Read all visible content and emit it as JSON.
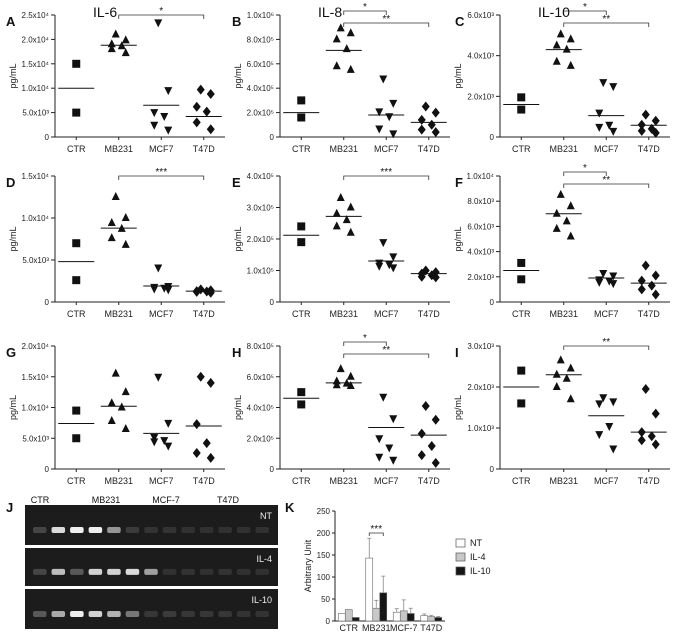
{
  "chart_data": [
    {
      "type": "scatter",
      "panel": "A",
      "title": "IL-6",
      "ylabel": "pg/mL",
      "ylim": [
        0,
        25000
      ],
      "yticks": [
        0,
        5000,
        10000,
        15000,
        20000,
        25000
      ],
      "ytick_labels": [
        "0",
        "5.0x10³",
        "1.0x10⁴",
        "1.5x10⁴",
        "2.0x10⁴",
        "2.5x10⁴"
      ],
      "categories": [
        "CTR",
        "MB231",
        "MCF7",
        "T47D"
      ],
      "points": [
        [
          15000,
          5000
        ],
        [
          21000,
          19800,
          19000,
          18600,
          18000,
          17200
        ],
        [
          23500,
          9600,
          5100,
          4300,
          2500,
          1500
        ],
        [
          9700,
          8800,
          6200,
          5200,
          3000,
          1600
        ]
      ],
      "means": [
        10000,
        18800,
        6500,
        4200
      ],
      "brackets": [
        {
          "from": 1,
          "to": 3,
          "label": "*"
        }
      ]
    },
    {
      "type": "scatter",
      "panel": "B",
      "title": "IL-8",
      "ylabel": "pg/mL",
      "ylim": [
        0,
        1000000
      ],
      "yticks": [
        0,
        200000,
        400000,
        600000,
        800000,
        1000000
      ],
      "ytick_labels": [
        "0",
        "2.0x10⁵",
        "4.0x10⁵",
        "6.0x10⁵",
        "8.0x10⁵",
        "1.0x10⁶"
      ],
      "categories": [
        "CTR",
        "MB231",
        "MCF7",
        "T47D"
      ],
      "points": [
        [
          300000,
          160000
        ],
        [
          890000,
          850000,
          800000,
          720000,
          580000,
          550000
        ],
        [
          480000,
          280000,
          210000,
          170000,
          70000,
          30000
        ],
        [
          250000,
          200000,
          140000,
          100000,
          60000,
          40000
        ]
      ],
      "means": [
        200000,
        710000,
        180000,
        120000
      ],
      "brackets": [
        {
          "from": 1,
          "to": 2,
          "label": "*"
        },
        {
          "from": 1,
          "to": 3,
          "label": "**"
        }
      ]
    },
    {
      "type": "scatter",
      "panel": "C",
      "title": "IL-10",
      "ylabel": "pg/mL",
      "ylim": [
        0,
        6000
      ],
      "yticks": [
        0,
        2000,
        4000,
        6000
      ],
      "ytick_labels": [
        "0",
        "2.0x10³",
        "4.0x10³",
        "6.0x10³"
      ],
      "categories": [
        "CTR",
        "MB231",
        "MCF7",
        "T47D"
      ],
      "points": [
        [
          1950,
          1350
        ],
        [
          5050,
          4800,
          4500,
          4300,
          3700,
          3500
        ],
        [
          2700,
          2500,
          1200,
          600,
          500,
          300
        ],
        [
          1100,
          800,
          600,
          400,
          300,
          200
        ]
      ],
      "means": [
        1600,
        4300,
        1050,
        580
      ],
      "brackets": [
        {
          "from": 1,
          "to": 2,
          "label": "*"
        },
        {
          "from": 1,
          "to": 3,
          "label": "**"
        }
      ]
    },
    {
      "type": "scatter",
      "panel": "D",
      "title": "",
      "ylabel": "pg/mL",
      "ylim": [
        0,
        15000
      ],
      "yticks": [
        0,
        5000,
        10000,
        15000
      ],
      "ytick_labels": [
        "0",
        "5.0x10³",
        "1.0x10⁴",
        "1.5x10⁴"
      ],
      "categories": [
        "CTR",
        "MB231",
        "MCF7",
        "T47D"
      ],
      "points": [
        [
          7000,
          2600
        ],
        [
          12500,
          10000,
          9400,
          8700,
          7600,
          6800
        ],
        [
          4100,
          1900,
          1800,
          1700,
          1600,
          1500
        ],
        [
          1500,
          1400,
          1300,
          1250,
          1200,
          1100
        ]
      ],
      "means": [
        4800,
        8800,
        1900,
        1300
      ],
      "brackets": [
        {
          "from": 1,
          "to": 3,
          "label": "***"
        }
      ]
    },
    {
      "type": "scatter",
      "panel": "E",
      "title": "",
      "ylabel": "pg/mL",
      "ylim": [
        0,
        400000
      ],
      "yticks": [
        0,
        100000,
        200000,
        300000,
        400000
      ],
      "ytick_labels": [
        "0",
        "1.0x10⁵",
        "2.0x10⁵",
        "3.0x10⁵",
        "4.0x10⁵"
      ],
      "categories": [
        "CTR",
        "MB231",
        "MCF7",
        "T47D"
      ],
      "points": [
        [
          240000,
          190000
        ],
        [
          330000,
          300000,
          280000,
          260000,
          240000,
          220000
        ],
        [
          190000,
          145000,
          125000,
          120000,
          115000,
          110000
        ],
        [
          100000,
          95000,
          90000,
          85000,
          80000,
          78000
        ]
      ],
      "means": [
        212000,
        272000,
        130000,
        90000
      ],
      "brackets": [
        {
          "from": 1,
          "to": 3,
          "label": "***"
        }
      ]
    },
    {
      "type": "scatter",
      "panel": "F",
      "title": "",
      "ylabel": "pg/mL",
      "ylim": [
        0,
        10000
      ],
      "yticks": [
        0,
        2000,
        4000,
        6000,
        8000,
        10000
      ],
      "ytick_labels": [
        "0",
        "2.0x10³",
        "4.0x10³",
        "6.0x10³",
        "8.0x10³",
        "1.0x10⁴"
      ],
      "categories": [
        "CTR",
        "MB231",
        "MCF7",
        "T47D"
      ],
      "points": [
        [
          3100,
          1800
        ],
        [
          8500,
          7600,
          7000,
          6400,
          5800,
          5200
        ],
        [
          2300,
          2100,
          1800,
          1700,
          1600,
          1500
        ],
        [
          2900,
          2100,
          1700,
          1300,
          1000,
          600
        ]
      ],
      "means": [
        2500,
        7000,
        1900,
        1500
      ],
      "brackets": [
        {
          "from": 1,
          "to": 2,
          "label": "*"
        },
        {
          "from": 1,
          "to": 3,
          "label": "**"
        }
      ]
    },
    {
      "type": "scatter",
      "panel": "G",
      "title": "",
      "ylabel": "pg/mL",
      "ylim": [
        0,
        20000
      ],
      "yticks": [
        0,
        5000,
        10000,
        15000,
        20000
      ],
      "ytick_labels": [
        "0",
        "5.0x10³",
        "1.0x10⁴",
        "1.5x10⁴",
        "2.0x10⁴"
      ],
      "categories": [
        "CTR",
        "MB231",
        "MCF7",
        "T47D"
      ],
      "points": [
        [
          9500,
          5000
        ],
        [
          15500,
          12500,
          10700,
          10000,
          7800,
          6500
        ],
        [
          15000,
          7500,
          5200,
          4700,
          4500,
          3800
        ],
        [
          15000,
          14000,
          7300,
          4200,
          2600,
          1800
        ]
      ],
      "means": [
        7400,
        10200,
        5800,
        7000
      ],
      "brackets": []
    },
    {
      "type": "scatter",
      "panel": "H",
      "title": "",
      "ylabel": "pg/mL",
      "ylim": [
        0,
        800000
      ],
      "yticks": [
        0,
        200000,
        400000,
        600000,
        800000
      ],
      "ytick_labels": [
        "0",
        "2.0x10⁵",
        "4.0x10⁵",
        "6.0x10⁵",
        "8.0x10⁵"
      ],
      "categories": [
        "CTR",
        "MB231",
        "MCF7",
        "T47D"
      ],
      "points": [
        [
          500000,
          420000
        ],
        [
          650000,
          600000,
          570000,
          555000,
          545000,
          540000
        ],
        [
          470000,
          330000,
          200000,
          140000,
          80000,
          60000
        ],
        [
          410000,
          320000,
          230000,
          150000,
          90000,
          40000
        ]
      ],
      "means": [
        460000,
        560000,
        270000,
        220000
      ],
      "brackets": [
        {
          "from": 1,
          "to": 2,
          "label": "*"
        },
        {
          "from": 1,
          "to": 3,
          "label": "**"
        }
      ]
    },
    {
      "type": "scatter",
      "panel": "I",
      "title": "",
      "ylabel": "pg/mL",
      "ylim": [
        0,
        3000
      ],
      "yticks": [
        0,
        1000,
        2000,
        3000
      ],
      "ytick_labels": [
        "0",
        "1.0x10³",
        "2.0x10³",
        "3.0x10³"
      ],
      "categories": [
        "CTR",
        "MB231",
        "MCF7",
        "T47D"
      ],
      "points": [
        [
          2400,
          1600
        ],
        [
          2650,
          2450,
          2300,
          2200,
          2000,
          1700
        ],
        [
          1750,
          1650,
          1600,
          1050,
          850,
          500
        ],
        [
          1950,
          1350,
          900,
          800,
          700,
          600
        ]
      ],
      "means": [
        2000,
        2300,
        1300,
        900
      ],
      "brackets": [
        {
          "from": 1,
          "to": 3,
          "label": "**"
        }
      ]
    },
    {
      "type": "bar",
      "panel": "K",
      "ylabel": "Arbitrary Unit",
      "ylim": [
        0,
        250
      ],
      "yticks": [
        0,
        50,
        100,
        150,
        200,
        250
      ],
      "categories": [
        "CTR",
        "MB231",
        "MCF-7",
        "T47D"
      ],
      "series": [
        {
          "name": "NT",
          "color": "#ffffff",
          "values": [
            17,
            143,
            20,
            12
          ],
          "errors": [
            0,
            45,
            8,
            4
          ]
        },
        {
          "name": "IL-4",
          "color": "#c8c8c8",
          "values": [
            26,
            29,
            23,
            10
          ],
          "errors": [
            0,
            18,
            25,
            3
          ]
        },
        {
          "name": "IL-10",
          "color": "#161616",
          "values": [
            8,
            64,
            17,
            8
          ],
          "errors": [
            0,
            38,
            12,
            2
          ]
        }
      ],
      "brackets": [
        {
          "from": 1,
          "to": 1,
          "label": "***"
        }
      ]
    }
  ],
  "panel_letters": [
    "A",
    "B",
    "C",
    "D",
    "E",
    "F",
    "G",
    "H",
    "I",
    "J",
    "K"
  ],
  "gel": {
    "lane_labels": [
      "CTR",
      "MB231",
      "MCF-7",
      "T47D"
    ],
    "strip_labels": [
      "NT",
      "IL-4",
      "IL-10"
    ],
    "strips": [
      {
        "label": "NT",
        "bands": [
          0.15,
          0.9,
          1.0,
          1.0,
          0.55,
          0.1,
          0.06,
          0.06,
          0.05,
          0.05,
          0.05,
          0.05,
          0.05
        ]
      },
      {
        "label": "IL-4",
        "bands": [
          0.15,
          0.75,
          0.25,
          0.85,
          0.85,
          0.9,
          0.6,
          0.05,
          0.06,
          0.05,
          0.06,
          0.05,
          0.05
        ]
      },
      {
        "label": "IL-10",
        "bands": [
          0.25,
          0.65,
          1.0,
          0.85,
          0.7,
          0.4,
          0.08,
          0.1,
          0.08,
          0.08,
          0.08,
          0.06,
          0.06
        ]
      }
    ]
  }
}
